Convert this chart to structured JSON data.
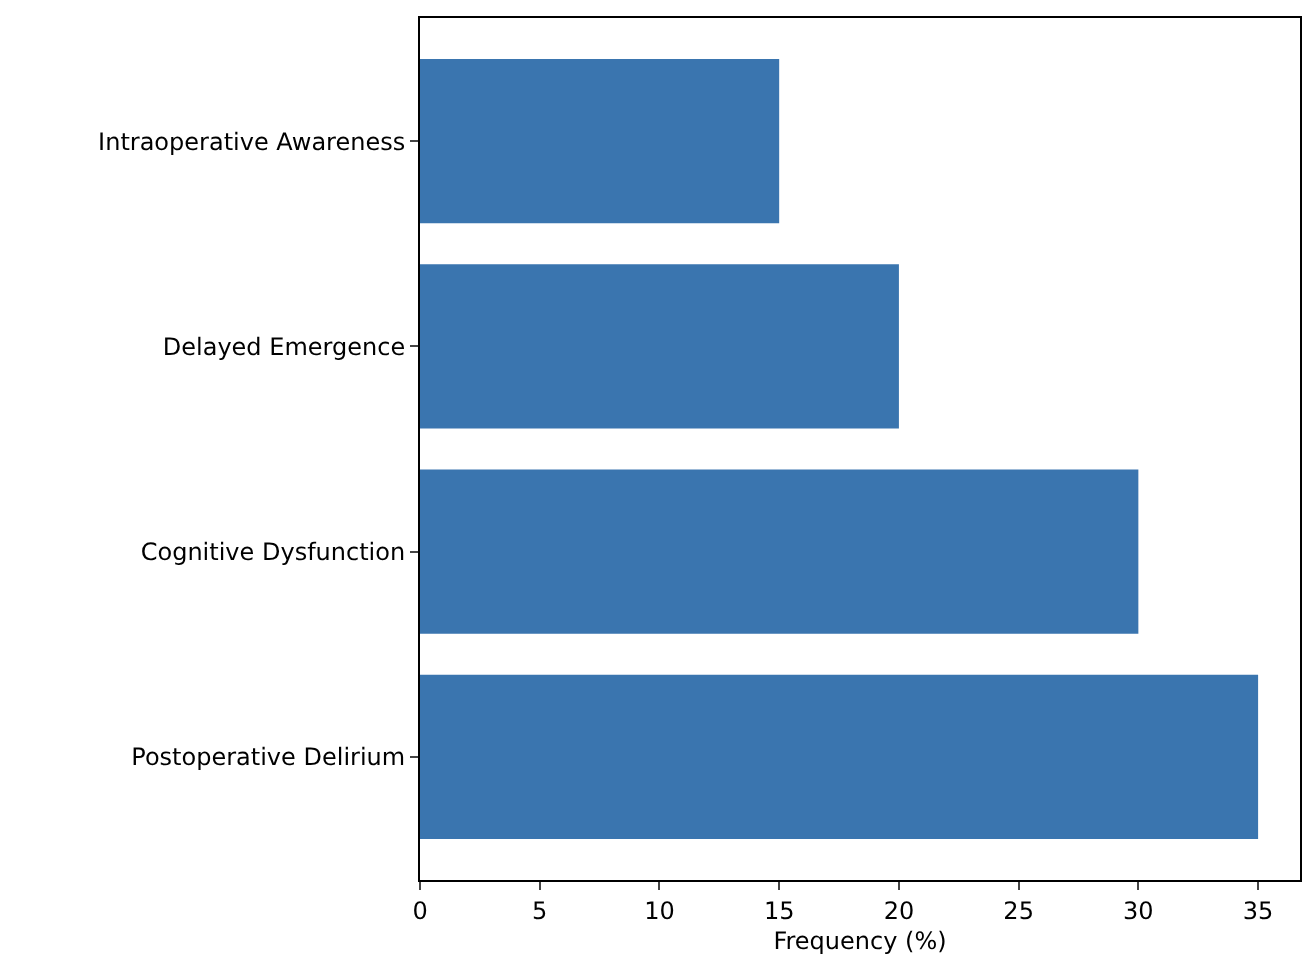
{
  "chart_data": {
    "type": "bar",
    "orientation": "horizontal",
    "xlabel": "Frequency (%)",
    "categories": [
      "Intraoperative Awareness",
      "Delayed Emergence",
      "Cognitive Dysfunction",
      "Postoperative Delirium"
    ],
    "values": [
      15,
      20,
      30,
      35
    ],
    "color": "#3a75af",
    "xlim": [
      0,
      36.75
    ],
    "xticks": [
      0,
      5,
      10,
      15,
      20,
      25,
      30,
      35
    ]
  }
}
